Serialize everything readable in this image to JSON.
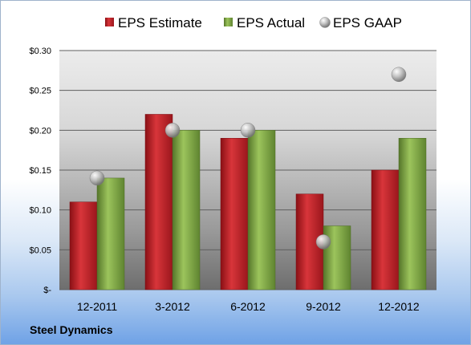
{
  "company": "Steel Dynamics",
  "chart_data": {
    "type": "bar",
    "categories": [
      "12-2011",
      "3-2012",
      "6-2012",
      "9-2012",
      "12-2012"
    ],
    "series": [
      {
        "name": "EPS Estimate",
        "kind": "bar",
        "values": [
          0.11,
          0.22,
          0.19,
          0.12,
          0.15
        ],
        "color": "#c0222a"
      },
      {
        "name": "EPS Actual",
        "kind": "bar",
        "values": [
          0.14,
          0.2,
          0.2,
          0.08,
          0.19
        ],
        "color": "#79a43a"
      },
      {
        "name": "EPS GAAP",
        "kind": "marker",
        "values": [
          0.14,
          0.2,
          0.2,
          0.06,
          0.27
        ],
        "color": "#a8a8a8"
      }
    ],
    "ylim": [
      0,
      0.3
    ],
    "yticks": [
      0,
      0.05,
      0.1,
      0.15,
      0.2,
      0.25,
      0.3
    ],
    "ytick_labels": [
      "$-",
      "$0.05",
      "$0.10",
      "$0.15",
      "$0.20",
      "$0.25",
      "$0.30"
    ],
    "grid": true,
    "legend_position": "top"
  }
}
